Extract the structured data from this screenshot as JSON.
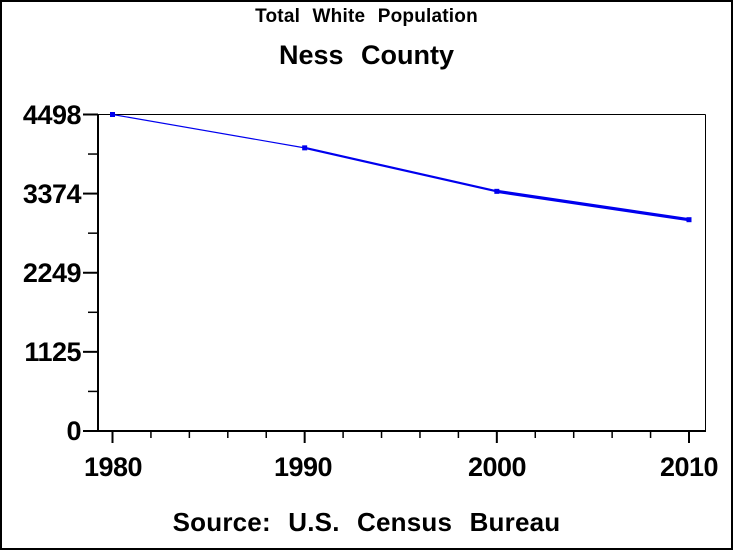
{
  "chart_data": {
    "type": "line",
    "title": "Total White Population",
    "subtitle": "Ness County",
    "footnote": "Source: U.S. Census Bureau",
    "x": [
      1980,
      1990,
      2000,
      2010
    ],
    "series": [
      {
        "name": "Total White Population",
        "values": [
          4498,
          4024,
          3406,
          3003
        ],
        "color": "#0000ee",
        "marker": "square"
      }
    ],
    "xlim": [
      1980,
      2010
    ],
    "ylim": [
      0,
      4498
    ],
    "xticks": [
      1980,
      1990,
      2000,
      2010
    ],
    "xtick_labels": [
      "1980",
      "1990",
      "2000",
      "2010"
    ],
    "yticks": [
      0,
      1125,
      2249,
      3374,
      4498
    ],
    "ytick_labels": [
      "0",
      "1125",
      "2249",
      "3374",
      "4498"
    ],
    "x_minor_tick_interval_years": 2,
    "y_minor_ticks_between_major": 1,
    "grid": false,
    "legend_position": "none",
    "axis_color": "#000000",
    "text_color": "#000000",
    "background": "#ffffff"
  }
}
